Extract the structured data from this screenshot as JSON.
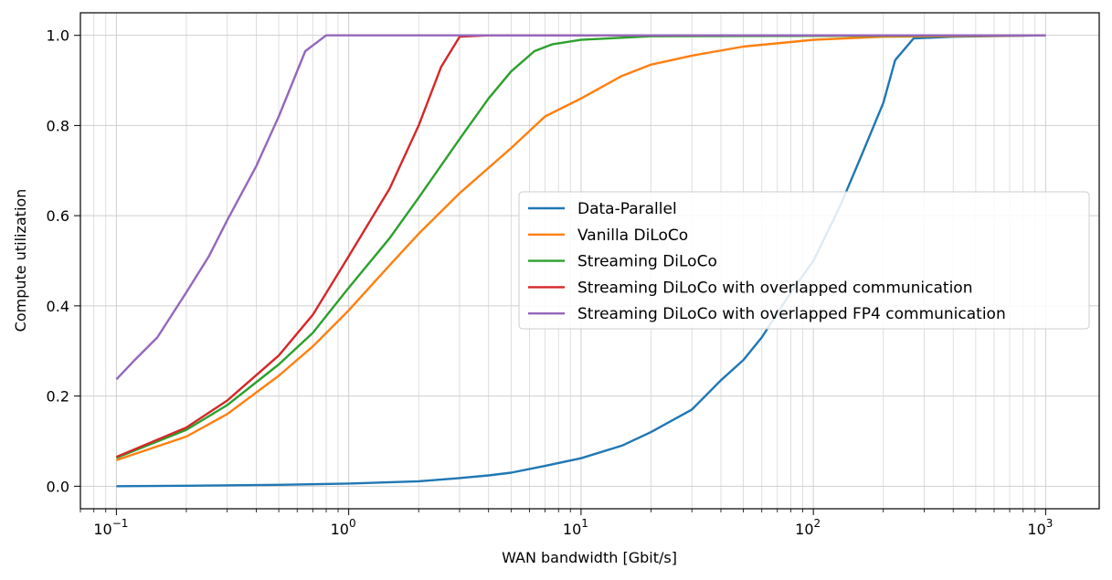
{
  "chart_data": {
    "type": "line",
    "xlabel": "WAN bandwidth [Gbit/s]",
    "ylabel": "Compute utilization",
    "x_scale": "log",
    "xlim": [
      0.07,
      1700
    ],
    "ylim": [
      -0.05,
      1.05
    ],
    "grid": true,
    "legend_position": "center-right",
    "x_ticks": [
      {
        "value": 0.1,
        "base": "10",
        "exp": "−1"
      },
      {
        "value": 1,
        "base": "10",
        "exp": "0"
      },
      {
        "value": 10,
        "base": "10",
        "exp": "1"
      },
      {
        "value": 100,
        "base": "10",
        "exp": "2"
      },
      {
        "value": 1000,
        "base": "10",
        "exp": "3"
      }
    ],
    "y_ticks": [
      "0.0",
      "0.2",
      "0.4",
      "0.6",
      "0.8",
      "1.0"
    ],
    "series": [
      {
        "name": "Data-Parallel",
        "color": "#1f77b4",
        "points": [
          [
            0.1,
            0.0
          ],
          [
            0.2,
            0.001
          ],
          [
            0.5,
            0.003
          ],
          [
            1,
            0.006
          ],
          [
            2,
            0.011
          ],
          [
            3,
            0.018
          ],
          [
            4,
            0.024
          ],
          [
            5,
            0.03
          ],
          [
            7,
            0.045
          ],
          [
            10,
            0.062
          ],
          [
            15,
            0.09
          ],
          [
            20,
            0.12
          ],
          [
            30,
            0.17
          ],
          [
            40,
            0.235
          ],
          [
            50,
            0.28
          ],
          [
            60,
            0.33
          ],
          [
            80,
            0.43
          ],
          [
            100,
            0.5
          ],
          [
            130,
            0.62
          ],
          [
            160,
            0.73
          ],
          [
            200,
            0.85
          ],
          [
            225,
            0.945
          ],
          [
            270,
            0.993
          ],
          [
            400,
            0.997
          ],
          [
            1000,
            1.0
          ]
        ]
      },
      {
        "name": "Vanilla DiLoCo",
        "color": "#ff7f0e",
        "points": [
          [
            0.1,
            0.058
          ],
          [
            0.2,
            0.11
          ],
          [
            0.3,
            0.16
          ],
          [
            0.5,
            0.245
          ],
          [
            0.7,
            0.31
          ],
          [
            1,
            0.39
          ],
          [
            1.5,
            0.49
          ],
          [
            2,
            0.56
          ],
          [
            3,
            0.65
          ],
          [
            5,
            0.75
          ],
          [
            7,
            0.82
          ],
          [
            10,
            0.86
          ],
          [
            15,
            0.91
          ],
          [
            20,
            0.935
          ],
          [
            30,
            0.955
          ],
          [
            50,
            0.975
          ],
          [
            100,
            0.99
          ],
          [
            200,
            0.997
          ],
          [
            1000,
            1.0
          ]
        ]
      },
      {
        "name": "Streaming DiLoCo",
        "color": "#2ca02c",
        "points": [
          [
            0.1,
            0.063
          ],
          [
            0.2,
            0.125
          ],
          [
            0.3,
            0.18
          ],
          [
            0.5,
            0.27
          ],
          [
            0.7,
            0.34
          ],
          [
            1,
            0.44
          ],
          [
            1.5,
            0.55
          ],
          [
            2,
            0.64
          ],
          [
            3,
            0.77
          ],
          [
            4,
            0.86
          ],
          [
            5,
            0.92
          ],
          [
            6.3,
            0.965
          ],
          [
            7.5,
            0.98
          ],
          [
            10,
            0.99
          ],
          [
            20,
            0.998
          ],
          [
            1000,
            1.0
          ]
        ]
      },
      {
        "name": "Streaming DiLoCo with overlapped communication",
        "color": "#d62728",
        "points": [
          [
            0.1,
            0.065
          ],
          [
            0.2,
            0.13
          ],
          [
            0.3,
            0.19
          ],
          [
            0.5,
            0.29
          ],
          [
            0.7,
            0.38
          ],
          [
            1,
            0.51
          ],
          [
            1.5,
            0.66
          ],
          [
            2,
            0.8
          ],
          [
            2.5,
            0.93
          ],
          [
            3,
            0.997
          ],
          [
            4,
            1.0
          ],
          [
            1000,
            1.0
          ]
        ]
      },
      {
        "name": "Streaming DiLoCo with overlapped FP4 communication",
        "color": "#9467bd",
        "points": [
          [
            0.1,
            0.237
          ],
          [
            0.12,
            0.28
          ],
          [
            0.15,
            0.33
          ],
          [
            0.2,
            0.43
          ],
          [
            0.25,
            0.51
          ],
          [
            0.3,
            0.59
          ],
          [
            0.4,
            0.71
          ],
          [
            0.5,
            0.82
          ],
          [
            0.65,
            0.965
          ],
          [
            0.8,
            1.0
          ],
          [
            1000,
            1.0
          ]
        ]
      }
    ]
  }
}
